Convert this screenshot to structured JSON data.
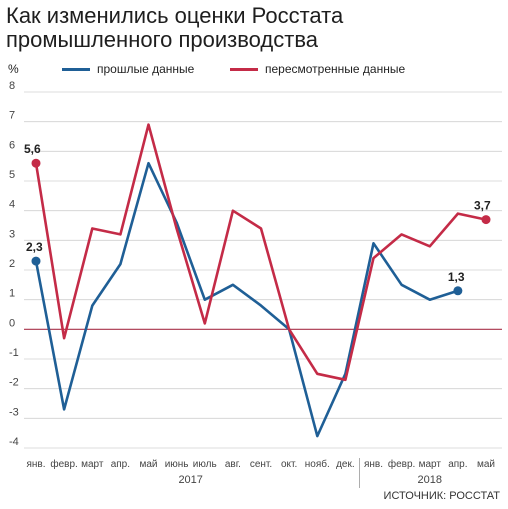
{
  "title_lines": [
    "Как изменились оценки Росстата",
    "промышленного производства"
  ],
  "unit": "%",
  "source": "ИСТОЧНИК: РОССТАТ",
  "colors": {
    "series_old": "#1f5f96",
    "series_new": "#c42b47",
    "zero_line": "#a8324a",
    "grid": "#d0d0d0"
  },
  "chart_data": {
    "type": "line",
    "title": "Как изменились оценки Росстата промышленного производства",
    "ylabel": "%",
    "ylim": [
      -4,
      8
    ],
    "yticks": [
      8,
      7,
      6,
      5,
      4,
      3,
      2,
      1,
      0,
      -1,
      -2,
      -3,
      -4
    ],
    "grid": true,
    "legend": "top",
    "categories": [
      "янв.",
      "февр.",
      "март",
      "апр.",
      "май",
      "июнь",
      "июль",
      "авг.",
      "сент.",
      "окт.",
      "нояб.",
      "дек.",
      "янв.",
      "февр.",
      "март",
      "апр.",
      "май"
    ],
    "years": [
      {
        "label": "2017",
        "from": 0,
        "to": 11
      },
      {
        "label": "2018",
        "from": 12,
        "to": 16
      }
    ],
    "series": [
      {
        "name": "прошлые данные",
        "values": [
          2.3,
          -2.7,
          0.8,
          2.2,
          5.6,
          3.6,
          1.0,
          1.5,
          0.8,
          0.0,
          -3.6,
          -1.5,
          2.9,
          1.5,
          1.0,
          1.3,
          null
        ]
      },
      {
        "name": "пересмотренные данные",
        "values": [
          5.6,
          -0.3,
          3.4,
          3.2,
          6.9,
          3.4,
          0.2,
          4.0,
          3.4,
          0.0,
          -1.5,
          -1.7,
          2.4,
          3.2,
          2.8,
          3.9,
          3.7
        ]
      }
    ],
    "annotations": [
      {
        "series": 0,
        "index": 0,
        "text": "2,3"
      },
      {
        "series": 1,
        "index": 0,
        "text": "5,6"
      },
      {
        "series": 0,
        "index": 15,
        "text": "1,3"
      },
      {
        "series": 1,
        "index": 16,
        "text": "3,7"
      }
    ]
  }
}
